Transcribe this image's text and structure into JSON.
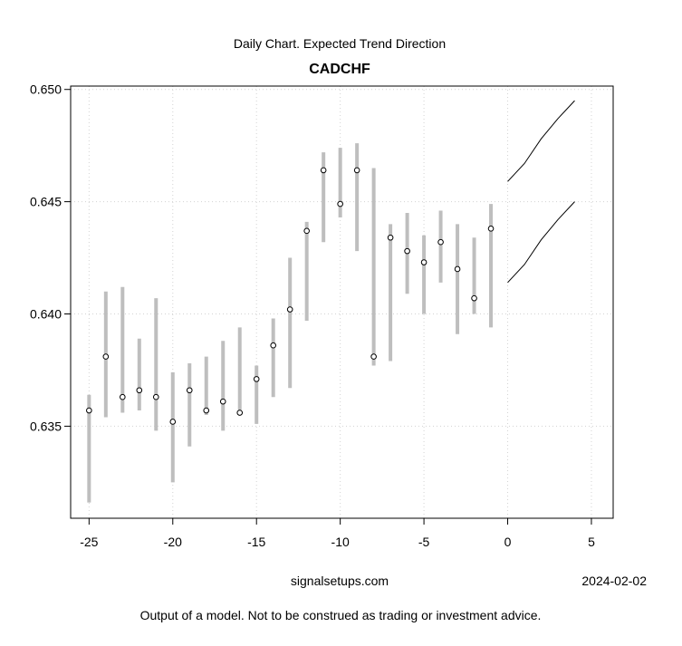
{
  "chart_data": {
    "type": "scatter",
    "subtitle": "Daily Chart. Expected Trend Direction",
    "title": "CADCHF",
    "xlim": [
      -26.1,
      6.3
    ],
    "ylim": [
      0.6309,
      0.65015
    ],
    "x_ticks": [
      -25,
      -20,
      -15,
      -10,
      -5,
      0,
      5
    ],
    "y_ticks": [
      0.635,
      0.64,
      0.645,
      0.65
    ],
    "y_tick_labels": [
      "0.635",
      "0.640",
      "0.645",
      "0.650"
    ],
    "grid": true,
    "points": [
      {
        "x": -25,
        "y": 0.6357,
        "low": 0.6316,
        "high": 0.6364
      },
      {
        "x": -24,
        "y": 0.6381,
        "low": 0.6354,
        "high": 0.641
      },
      {
        "x": -23,
        "y": 0.6363,
        "low": 0.6356,
        "high": 0.6412
      },
      {
        "x": -22,
        "y": 0.6366,
        "low": 0.6357,
        "high": 0.6389
      },
      {
        "x": -21,
        "y": 0.6363,
        "low": 0.6348,
        "high": 0.6407
      },
      {
        "x": -20,
        "y": 0.6352,
        "low": 0.6325,
        "high": 0.6374
      },
      {
        "x": -19,
        "y": 0.6366,
        "low": 0.6341,
        "high": 0.6378
      },
      {
        "x": -18,
        "y": 0.6357,
        "low": 0.6355,
        "high": 0.6381
      },
      {
        "x": -17,
        "y": 0.6361,
        "low": 0.6348,
        "high": 0.6388
      },
      {
        "x": -16,
        "y": 0.6356,
        "low": 0.6355,
        "high": 0.6394
      },
      {
        "x": -15,
        "y": 0.6371,
        "low": 0.6351,
        "high": 0.6377
      },
      {
        "x": -14,
        "y": 0.6386,
        "low": 0.6363,
        "high": 0.6398
      },
      {
        "x": -13,
        "y": 0.6402,
        "low": 0.6367,
        "high": 0.6425
      },
      {
        "x": -12,
        "y": 0.6437,
        "low": 0.6397,
        "high": 0.6441
      },
      {
        "x": -11,
        "y": 0.6464,
        "low": 0.6432,
        "high": 0.6472
      },
      {
        "x": -10,
        "y": 0.6449,
        "low": 0.6443,
        "high": 0.6474
      },
      {
        "x": -9,
        "y": 0.6464,
        "low": 0.6428,
        "high": 0.6476
      },
      {
        "x": -8,
        "y": 0.6381,
        "low": 0.6377,
        "high": 0.6465
      },
      {
        "x": -7,
        "y": 0.6434,
        "low": 0.6379,
        "high": 0.644
      },
      {
        "x": -6,
        "y": 0.6428,
        "low": 0.6409,
        "high": 0.6445
      },
      {
        "x": -5,
        "y": 0.6423,
        "low": 0.64,
        "high": 0.6435
      },
      {
        "x": -4,
        "y": 0.6432,
        "low": 0.6414,
        "high": 0.6446
      },
      {
        "x": -3,
        "y": 0.642,
        "low": 0.6391,
        "high": 0.644
      },
      {
        "x": -2,
        "y": 0.6407,
        "low": 0.64,
        "high": 0.6434
      },
      {
        "x": -1,
        "y": 0.6438,
        "low": 0.6394,
        "high": 0.6449
      }
    ],
    "forecast_upper": {
      "x": [
        0,
        1,
        2,
        3,
        4
      ],
      "y": [
        0.6459,
        0.6467,
        0.6478,
        0.6487,
        0.6495
      ]
    },
    "forecast_lower": {
      "x": [
        0,
        1,
        2,
        3,
        4
      ],
      "y": [
        0.6414,
        0.6422,
        0.6433,
        0.6442,
        0.645
      ]
    },
    "colors": {
      "range_bar": "#bebebe",
      "line": "#000000",
      "grid": "#d3d3d3"
    }
  },
  "footer": {
    "source": "signalsetups.com",
    "date": "2024-02-02",
    "disclaimer": "Output of a model. Not to be construed as trading or investment advice."
  }
}
